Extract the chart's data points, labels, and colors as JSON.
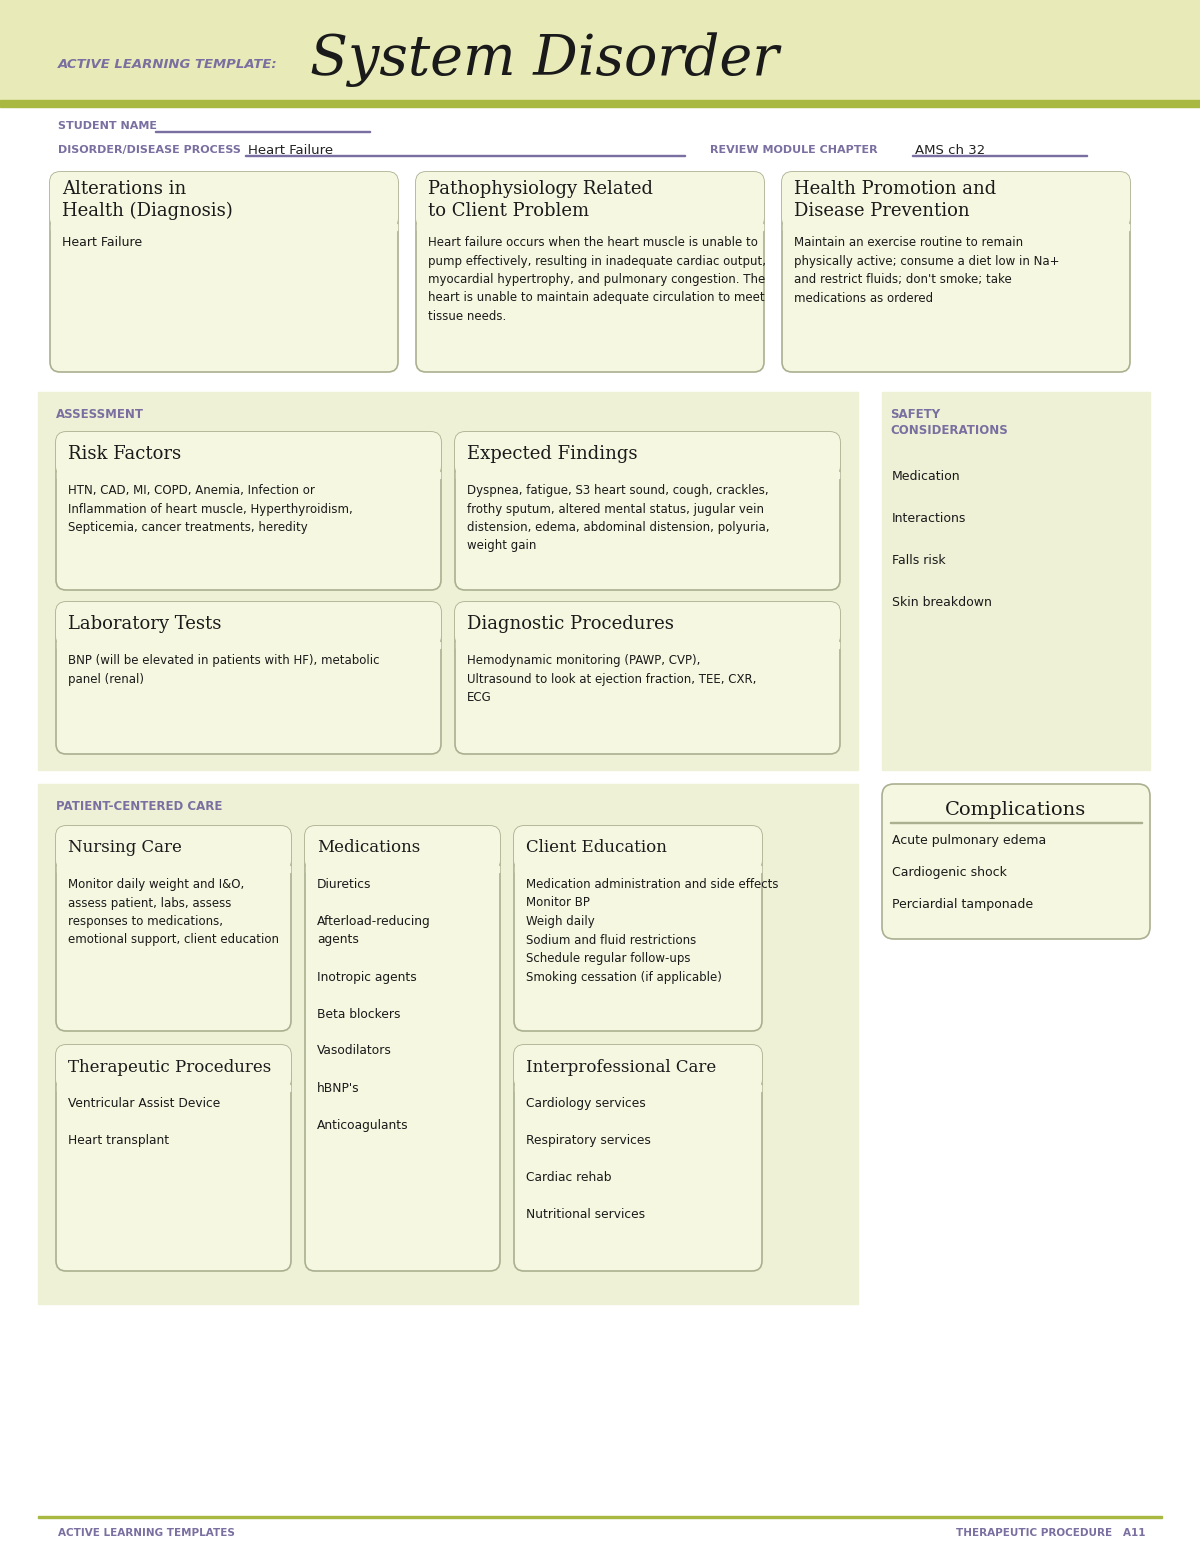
{
  "bg_color": "#ffffff",
  "header_bg": "#e8ebb8",
  "header_line_color": "#a8b840",
  "section_bg": "#eff1d6",
  "box_bg": "#f5f7e0",
  "box_border": "#aab090",
  "label_color": "#7a6fa0",
  "title_small": "ACTIVE LEARNING TEMPLATE:",
  "title_large": "System Disorder",
  "student_name_label": "STUDENT NAME",
  "disorder_label": "DISORDER/DISEASE PROCESS",
  "disorder_value": "Heart Failure",
  "review_label": "REVIEW MODULE CHAPTER",
  "review_value": "AMS ch 32",
  "section1_title": "Alterations in\nHealth (Diagnosis)",
  "section1_body": "Heart Failure",
  "section2_title": "Pathophysiology Related\nto Client Problem",
  "section2_body": "Heart failure occurs when the heart muscle is unable to\npump effectively, resulting in inadequate cardiac output,\nmyocardial hypertrophy, and pulmonary congestion. The\nheart is unable to maintain adequate circulation to meet\ntissue needs.",
  "section3_title": "Health Promotion and\nDisease Prevention",
  "section3_body": "Maintain an exercise routine to remain\nphysically active; consume a diet low in Na+\nand restrict fluids; don't smoke; take\nmedications as ordered",
  "assess_label": "ASSESSMENT",
  "safety_label": "SAFETY\nCONSIDERATIONS",
  "risk_title": "Risk Factors",
  "risk_body": "HTN, CAD, MI, COPD, Anemia, Infection or\nInflammation of heart muscle, Hyperthyroidism,\nSepticemia, cancer treatments, heredity",
  "expected_title": "Expected Findings",
  "expected_body": "Dyspnea, fatigue, S3 heart sound, cough, crackles,\nfrothy sputum, altered mental status, jugular vein\ndistension, edema, abdominal distension, polyuria,\nweight gain",
  "safety_items": [
    "Medication",
    "Interactions",
    "Falls risk",
    "Skin breakdown"
  ],
  "lab_title": "Laboratory Tests",
  "lab_body": "BNP (will be elevated in patients with HF), metabolic\npanel (renal)",
  "diag_title": "Diagnostic Procedures",
  "diag_body": "Hemodynamic monitoring (PAWP, CVP),\nUltrasound to look at ejection fraction, TEE, CXR,\nECG",
  "patient_label": "PATIENT-CENTERED CARE",
  "complications_title": "Complications",
  "complications_items": [
    "Acute pulmonary edema",
    "Cardiogenic shock",
    "Perciardial tamponade"
  ],
  "nursing_title": "Nursing Care",
  "nursing_body": "Monitor daily weight and I&O,\nassess patient, labs, assess\nresponses to medications,\nemotional support, client education",
  "meds_title": "Medications",
  "meds_body": "Diuretics\n\nAfterload-reducing\nagents\n\nInotropic agents\n\nBeta blockers\n\nVasodilators\n\nhBNP's\n\nAnticoagulants",
  "client_ed_title": "Client Education",
  "client_ed_body": "Medication administration and side effects\nMonitor BP\nWeigh daily\nSodium and fluid restrictions\nSchedule regular follow-ups\nSmoking cessation (if applicable)",
  "therapeutic_title": "Therapeutic Procedures",
  "therapeutic_body": "Ventricular Assist Device\n\nHeart transplant",
  "interpro_title": "Interprofessional Care",
  "interpro_body": "Cardiology services\n\nRespiratory services\n\nCardiac rehab\n\nNutritional services",
  "footer_left": "ACTIVE LEARNING TEMPLATES",
  "footer_right": "THERAPEUTIC PROCEDURE   A11"
}
